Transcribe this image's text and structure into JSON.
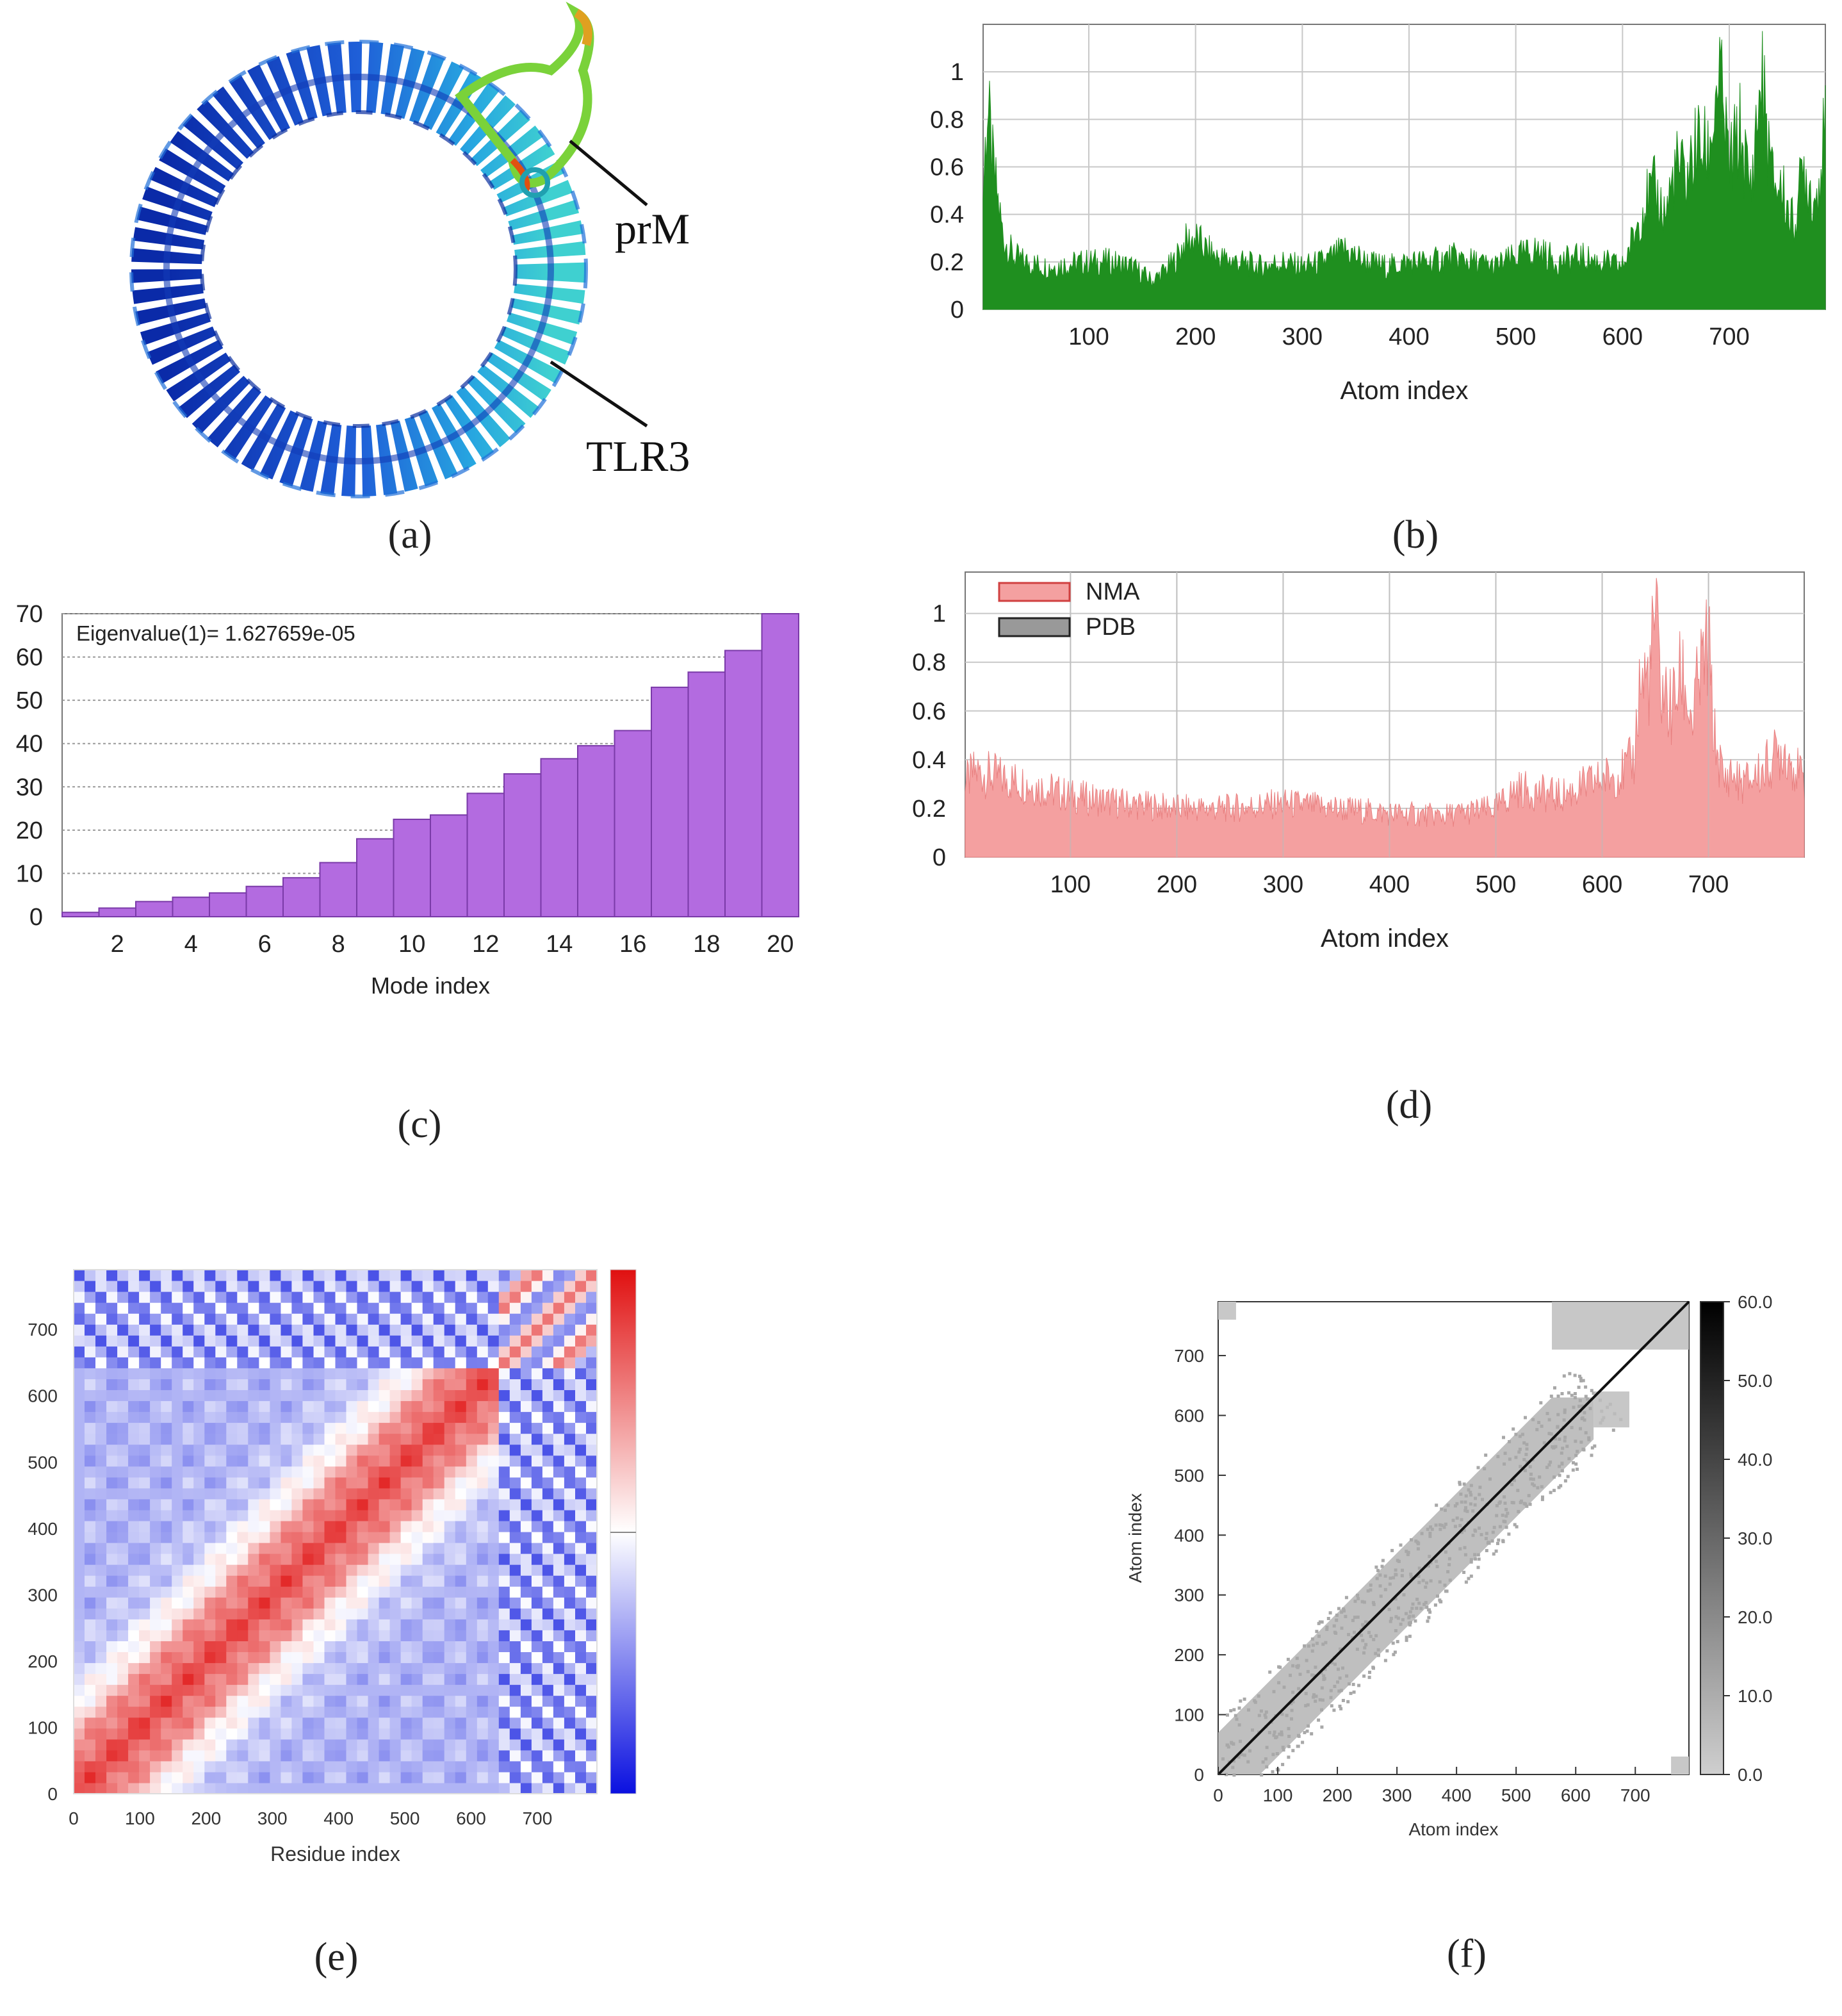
{
  "panels": {
    "a": {
      "label": "(a)",
      "annotations": [
        "prM",
        "TLR3"
      ]
    },
    "b": {
      "label": "(b)"
    },
    "c": {
      "label": "(c)"
    },
    "d": {
      "label": "(d)"
    },
    "e": {
      "label": "(e)"
    },
    "f": {
      "label": "(f)"
    }
  },
  "colors": {
    "green": "#1f8f1f",
    "purple": "#b36be0",
    "pink": "#f4a0a0",
    "red": "#e03030",
    "blue": "#2a2ad0",
    "gray": "#b0b0b0"
  },
  "chart_data": [
    {
      "id": "b",
      "type": "area",
      "title": "",
      "xlabel": "Atom index",
      "ylabel": "",
      "xlim": [
        1,
        790
      ],
      "ylim": [
        0,
        1.2
      ],
      "xticks": [
        "100",
        "200",
        "300",
        "400",
        "500",
        "600",
        "700"
      ],
      "yticks": [
        "0",
        "0.2",
        "0.4",
        "0.6",
        "0.8",
        "1"
      ],
      "grid": true,
      "series": [
        {
          "name": "",
          "x": [
            1,
            5,
            10,
            15,
            20,
            30,
            40,
            60,
            80,
            100,
            120,
            140,
            160,
            180,
            190,
            200,
            210,
            220,
            240,
            260,
            280,
            300,
            320,
            340,
            360,
            380,
            400,
            420,
            440,
            460,
            480,
            500,
            520,
            540,
            560,
            580,
            600,
            610,
            620,
            630,
            640,
            650,
            660,
            670,
            680,
            685,
            690,
            700,
            710,
            720,
            730,
            740,
            750,
            760,
            770,
            780,
            790
          ],
          "values": [
            0.5,
            0.85,
            0.6,
            0.45,
            0.3,
            0.22,
            0.2,
            0.18,
            0.19,
            0.2,
            0.2,
            0.18,
            0.12,
            0.2,
            0.28,
            0.3,
            0.25,
            0.22,
            0.2,
            0.18,
            0.2,
            0.18,
            0.2,
            0.25,
            0.2,
            0.18,
            0.2,
            0.2,
            0.22,
            0.2,
            0.18,
            0.22,
            0.25,
            0.2,
            0.22,
            0.2,
            0.18,
            0.3,
            0.45,
            0.5,
            0.4,
            0.6,
            0.55,
            0.7,
            0.65,
            0.8,
            1.0,
            0.6,
            0.75,
            0.5,
            0.98,
            0.55,
            0.5,
            0.35,
            0.6,
            0.45,
            0.75
          ]
        }
      ],
      "color": "#1f8f1f"
    },
    {
      "id": "c",
      "type": "bar",
      "title": "",
      "xlabel": "Mode index",
      "ylabel": "",
      "annotation": "Eigenvalue(1)= 1.627659e-05",
      "ylim": [
        0,
        70
      ],
      "xticks": [
        "2",
        "4",
        "6",
        "8",
        "10",
        "12",
        "14",
        "16",
        "18",
        "20"
      ],
      "yticks": [
        "0",
        "10",
        "20",
        "30",
        "40",
        "50",
        "60",
        "70"
      ],
      "categories": [
        1,
        2,
        3,
        4,
        5,
        6,
        7,
        8,
        9,
        10,
        11,
        12,
        13,
        14,
        15,
        16,
        17,
        18,
        19,
        20
      ],
      "values": [
        1,
        2,
        3.5,
        4.5,
        5.5,
        7,
        9,
        12.5,
        18,
        22.5,
        23.5,
        28.5,
        33,
        36.5,
        39.5,
        43,
        53,
        56.5,
        61.5,
        70
      ],
      "color": "#b36be0"
    },
    {
      "id": "d",
      "type": "area",
      "title": "",
      "xlabel": "Atom index",
      "ylabel": "",
      "xlim": [
        1,
        790
      ],
      "ylim": [
        0,
        1.17
      ],
      "xticks": [
        "100",
        "200",
        "300",
        "400",
        "500",
        "600",
        "700"
      ],
      "yticks": [
        "0",
        "0.2",
        "0.4",
        "0.6",
        "0.8",
        "1"
      ],
      "grid": true,
      "legend": [
        "NMA",
        "PDB"
      ],
      "legend_position": "top-left",
      "series": [
        {
          "name": "NMA",
          "x": [
            1,
            10,
            30,
            60,
            100,
            150,
            200,
            250,
            300,
            350,
            400,
            450,
            500,
            520,
            560,
            600,
            620,
            630,
            635,
            645,
            650,
            655,
            665,
            675,
            685,
            690,
            700,
            705,
            715,
            720,
            730,
            740,
            750,
            760,
            770,
            780,
            790
          ],
          "values": [
            0.3,
            0.35,
            0.33,
            0.3,
            0.25,
            0.22,
            0.2,
            0.2,
            0.22,
            0.2,
            0.18,
            0.17,
            0.2,
            0.28,
            0.25,
            0.32,
            0.35,
            0.4,
            0.7,
            0.75,
            1.0,
            0.7,
            0.6,
            0.75,
            0.55,
            0.7,
            0.88,
            0.5,
            0.3,
            0.35,
            0.3,
            0.32,
            0.35,
            0.4,
            0.45,
            0.38,
            0.3
          ]
        },
        {
          "name": "PDB",
          "values": []
        }
      ],
      "color": "#f4a0a0"
    },
    {
      "id": "e",
      "type": "heatmap",
      "xlabel": "Residue index",
      "ylabel": "",
      "xticks": [
        "0",
        "100",
        "200",
        "300",
        "400",
        "500",
        "600",
        "700"
      ],
      "yticks": [
        "0",
        "100",
        "200",
        "300",
        "400",
        "500",
        "600",
        "700"
      ],
      "xlim": [
        0,
        790
      ],
      "ylim": [
        0,
        790
      ],
      "colormap": "blue-white-red"
    },
    {
      "id": "f",
      "type": "heatmap",
      "xlabel": "Atom index",
      "ylabel": "Atom index",
      "xticks": [
        "0",
        "100",
        "200",
        "300",
        "400",
        "500",
        "600",
        "700"
      ],
      "yticks": [
        "0",
        "100",
        "200",
        "300",
        "400",
        "500",
        "600",
        "700"
      ],
      "colorbar_ticks": [
        "0.0",
        "10.0",
        "20.0",
        "30.0",
        "40.0",
        "50.0",
        "60.0"
      ],
      "xlim": [
        0,
        790
      ],
      "ylim": [
        0,
        790
      ],
      "colormap": "gray"
    }
  ]
}
